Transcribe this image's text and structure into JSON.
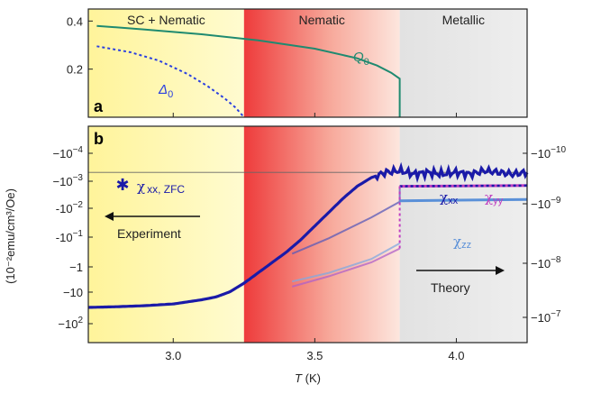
{
  "chart_data": {
    "type": "line",
    "xlabel": "T (K)",
    "xlim": [
      2.7,
      4.25
    ],
    "x_ticks": [
      "3.0",
      "3.5",
      "4.0"
    ],
    "regions": [
      {
        "label": "SC + Nematic",
        "from": 2.7,
        "to": 3.25,
        "color": "#fff8a8"
      },
      {
        "label": "Nematic",
        "from": 3.25,
        "to": 3.8,
        "color": "#ee5555"
      },
      {
        "label": "Metallic",
        "from": 3.8,
        "to": 4.25,
        "color": "#e4e4e4"
      }
    ],
    "panels": [
      {
        "letter": "a",
        "ylim": [
          0,
          0.45
        ],
        "y_ticks": [
          "0.2",
          "0.4"
        ],
        "series": [
          {
            "name": "Q0",
            "label_main": "Q",
            "label_sub": "0",
            "color": "#1f8a70",
            "style": "solid",
            "x": [
              2.73,
              2.9,
              3.1,
              3.3,
              3.5,
              3.65,
              3.72,
              3.77,
              3.8,
              3.8
            ],
            "y": [
              0.38,
              0.365,
              0.345,
              0.32,
              0.285,
              0.245,
              0.215,
              0.185,
              0.16,
              0.0
            ]
          },
          {
            "name": "Delta0",
            "label_main": "Δ",
            "label_sub": "0",
            "color": "#2a3fe0",
            "style": "dotted",
            "x": [
              2.73,
              2.85,
              2.95,
              3.05,
              3.12,
              3.18,
              3.22,
              3.25
            ],
            "y": [
              0.295,
              0.27,
              0.235,
              0.18,
              0.13,
              0.08,
              0.04,
              0.0
            ]
          }
        ]
      },
      {
        "letter": "b",
        "ylabel": "(10⁻²emu/cm³/Oe)",
        "left_ticks": [
          {
            "base": "−10",
            "exp": "−4"
          },
          {
            "base": "−10",
            "exp": "−3"
          },
          {
            "base": "-10",
            "exp": "−2"
          },
          {
            "base": "-10",
            "exp": "−1"
          },
          {
            "base": "−1",
            "exp": ""
          },
          {
            "base": "−10",
            "exp": ""
          },
          {
            "base": "−10",
            "exp": "2"
          }
        ],
        "right_ticks": [
          {
            "base": "−10",
            "exp": "−10"
          },
          {
            "base": "−10",
            "exp": "−9"
          },
          {
            "base": "−10",
            "exp": "−8"
          },
          {
            "base": "−10",
            "exp": "−7"
          }
        ],
        "experiment": {
          "name": "χxx, ZFC",
          "label_main": "χ",
          "label_sub": "xx, ZFC",
          "arrow_label": "Experiment",
          "color": "#1a1aa8",
          "x": [
            2.7,
            2.8,
            2.9,
            3.0,
            3.1,
            3.15,
            3.2,
            3.25,
            3.3,
            3.35,
            3.4,
            3.45,
            3.5,
            3.55,
            3.6,
            3.65,
            3.7,
            3.75,
            3.8,
            3.85,
            3.9,
            3.95,
            4.0,
            4.05,
            4.1,
            4.15,
            4.2,
            4.25
          ],
          "y_log": [
            0.6,
            0.62,
            0.65,
            0.7,
            0.82,
            0.9,
            1.05,
            1.3,
            1.6,
            1.9,
            2.2,
            2.55,
            2.95,
            3.35,
            3.75,
            4.1,
            4.35,
            4.5,
            4.55,
            4.45,
            4.5,
            4.45,
            4.5,
            4.45,
            4.55,
            4.5,
            4.45,
            4.5
          ]
        },
        "theory": {
          "arrow_label": "Theory",
          "series": [
            {
              "name": "χxx",
              "label_main": "χ",
              "label_sub": "xx",
              "color": "#1a1aa8",
              "style": "dotted",
              "x": [
                3.8,
                4.25
              ],
              "y_log": [
                4.1,
                4.12
              ]
            },
            {
              "name": "χyy",
              "label_main": "χ",
              "label_sub": "yy",
              "color": "#c03ec0",
              "style": "solid",
              "x": [
                3.8,
                4.25
              ],
              "y_log": [
                4.1,
                4.12
              ]
            },
            {
              "name": "χzz",
              "label_main": "χ",
              "label_sub": "zz",
              "color": "#5a90d8",
              "style": "solid",
              "x": [
                3.8,
                4.25
              ],
              "y_log": [
                3.68,
                3.72
              ]
            }
          ],
          "faded": [
            {
              "color": "#5a5ab8",
              "x": [
                3.42,
                3.55,
                3.7,
                3.8,
                3.8
              ],
              "y_log": [
                2.15,
                2.6,
                3.2,
                3.65,
                4.1
              ]
            },
            {
              "color": "#b060c8",
              "x": [
                3.42,
                3.55,
                3.7,
                3.8
              ],
              "y_log": [
                1.2,
                1.5,
                1.9,
                2.3
              ]
            },
            {
              "color": "#80a8e0",
              "x": [
                3.42,
                3.55,
                3.7,
                3.8
              ],
              "y_log": [
                1.35,
                1.6,
                2.0,
                2.45
              ]
            }
          ]
        },
        "hline_log": 4.5
      }
    ]
  }
}
